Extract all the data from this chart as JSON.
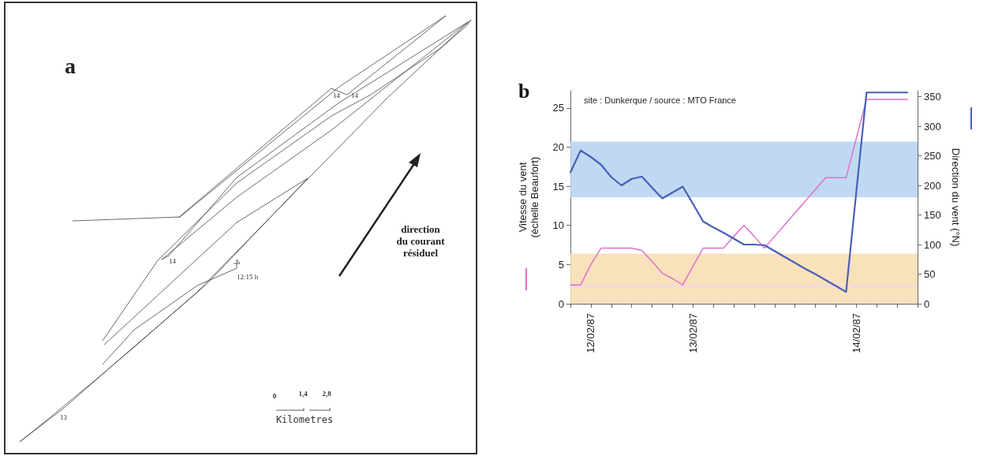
{
  "chart_data": [
    {
      "type": "other",
      "title": "a",
      "annotations": [
        "14",
        "14",
        "14",
        "12:15 h",
        "13",
        "direction du courant résiduel",
        "0",
        "1,4",
        "2,8",
        "Kilometres"
      ]
    },
    {
      "type": "line",
      "title": "b",
      "annotations": [
        "site : Dunkerque / source : MTO France"
      ],
      "ylabel": "Vitesse du vent\n(échelle Beaufort)",
      "y2label": "Direction du vent (°N)",
      "categories": [
        null,
        null,
        "12/02/87",
        null,
        null,
        null,
        null,
        null,
        null,
        null,
        null,
        null,
        "13/02/87",
        null,
        null,
        null,
        null,
        null,
        null,
        null,
        null,
        null,
        null,
        null,
        null,
        null,
        null,
        null,
        "14/02/87",
        null,
        null,
        null,
        null,
        null,
        null
      ],
      "ylim": [
        0,
        27.2
      ],
      "yticks": [
        0,
        5,
        10,
        15,
        20,
        25
      ],
      "y2lim": [
        0,
        360
      ],
      "y2ticks": [
        0,
        50,
        100,
        150,
        200,
        250,
        300,
        350
      ],
      "grid": false,
      "marker": "none",
      "line_style": "solid",
      "bands": [
        {
          "axis": "y",
          "from": 13.6,
          "to": 20.7,
          "color": "#b4d2f0"
        },
        {
          "axis": "y",
          "from": 0,
          "to": 6.4,
          "color": "#f8dcb0"
        }
      ],
      "ref_lines": [
        {
          "axis": "y",
          "value": 2.2,
          "color": "#f4d4ec"
        }
      ],
      "series": [
        {
          "color": "#e070c8",
          "values": [
            2.4,
            2.4,
            5.0,
            7.1,
            7.1,
            7.1,
            7.1,
            6.8,
            5.4,
            3.9,
            3.2,
            2.4,
            4.8,
            7.1,
            7.1,
            7.1,
            8.6,
            10,
            8.6,
            7.1,
            8.6,
            10.1,
            11.6,
            13.1,
            14.6,
            16.1,
            16.1,
            16.1,
            21.1,
            26.1,
            26.1,
            26.1,
            26.1,
            26.1,
            null
          ]
        },
        {
          "color": "#4a5fb8",
          "axis": "y2",
          "values": [
            222,
            259,
            248,
            235,
            214,
            200,
            211,
            215,
            196,
            178,
            188,
            198,
            169,
            139,
            129,
            120,
            110,
            100,
            100,
            99,
            89,
            79,
            69,
            59,
            50,
            40,
            30,
            20,
            189,
            357,
            357,
            357,
            357,
            357,
            null
          ]
        }
      ]
    }
  ]
}
